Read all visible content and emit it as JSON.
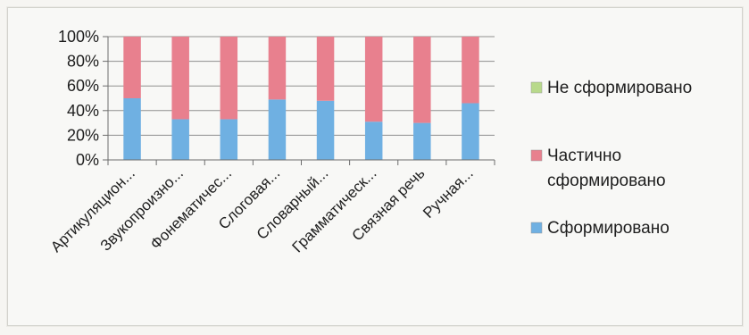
{
  "chart_data": {
    "type": "bar",
    "stacked": true,
    "percent": true,
    "categories": [
      "Артикуляцион...",
      "Звукопроизно...",
      "Фонематичес...",
      "Слоговая...",
      "Словарный...",
      "Грамматическ...",
      "Связная речь",
      "Ручная..."
    ],
    "series": [
      {
        "name": "Сформировано",
        "values": [
          50,
          33,
          33,
          49,
          48,
          31,
          30,
          46
        ],
        "color": "#6fb0e2"
      },
      {
        "name": "Частично сформировано",
        "values": [
          50,
          67,
          67,
          51,
          52,
          69,
          70,
          54
        ],
        "color": "#e8808e"
      },
      {
        "name": "Не сформировано",
        "values": [
          0,
          0,
          0,
          0,
          0,
          0,
          0,
          0
        ],
        "color": "#b8d98b"
      }
    ],
    "yticks": [
      "0%",
      "20%",
      "40%",
      "60%",
      "80%",
      "100%"
    ],
    "ylim": [
      0,
      100
    ],
    "grid": true,
    "legend": "right"
  }
}
